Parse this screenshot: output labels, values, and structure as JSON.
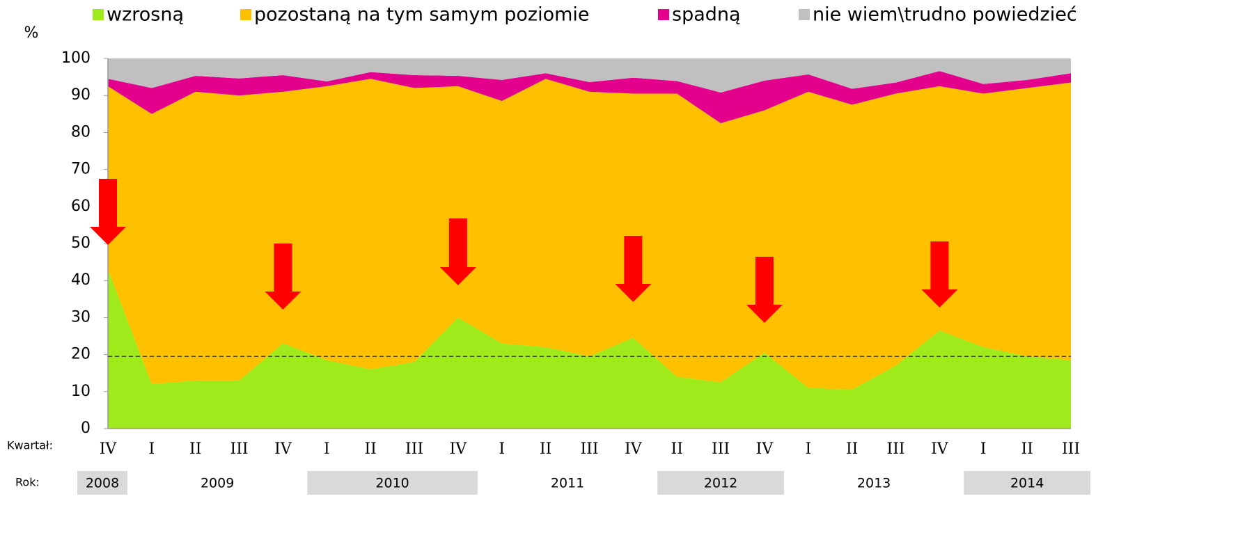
{
  "chart_data": {
    "type": "stacked_area",
    "y_label": "%",
    "row_labels": {
      "quarter": "Kwartał:",
      "year": "Rok:"
    },
    "categories": [
      "IV",
      "I",
      "II",
      "III",
      "IV",
      "I",
      "II",
      "III",
      "IV",
      "I",
      "II",
      "III",
      "IV",
      "II",
      "III",
      "IV",
      "I",
      "II",
      "III",
      "IV",
      "I",
      "II",
      "III"
    ],
    "years": [
      "2008",
      "2009",
      "2010",
      "2011",
      "2012",
      "2013",
      "2014"
    ],
    "series": [
      {
        "name": "wzrosną",
        "color": "#9fea1a",
        "values": [
          43,
          12,
          13,
          13,
          23,
          18.5,
          16,
          18,
          30,
          23,
          22,
          19.5,
          24.5,
          14,
          12.5,
          20.5,
          11,
          10.5,
          17,
          26.5,
          22,
          19.5,
          18.5
        ]
      },
      {
        "name": "pozostaną na tym samym poziomie",
        "color": "#ffc000",
        "values": [
          49.5,
          73,
          78,
          77,
          68,
          74,
          78.5,
          74,
          62.5,
          65.5,
          72.5,
          71.5,
          66,
          76.5,
          70,
          65.5,
          80,
          77,
          73.5,
          66,
          68.5,
          72.5,
          75
        ]
      },
      {
        "name": "spadną",
        "color": "#e3008c",
        "values": [
          2,
          7,
          4.3,
          4.6,
          4.5,
          1.3,
          1.8,
          3.5,
          2.8,
          5.7,
          1.5,
          2.6,
          4.3,
          3.4,
          8.3,
          8,
          4.7,
          4.3,
          3,
          4.1,
          2.6,
          2.2,
          2.5
        ]
      },
      {
        "name": "nie wiem\\trudno powiedzieć",
        "color": "#c0c0c0",
        "values": [
          5.5,
          8,
          4.7,
          5.4,
          4.5,
          6.2,
          3.7,
          4.5,
          4.7,
          5.8,
          4,
          6.4,
          5.2,
          6.1,
          9.2,
          6,
          4.3,
          8.2,
          6.5,
          3.4,
          6.9,
          5.8,
          4
        ]
      }
    ],
    "reference_line": 19.5,
    "ylim": [
      0,
      100
    ],
    "yticks": [
      0,
      10,
      20,
      30,
      40,
      50,
      60,
      70,
      80,
      90,
      100
    ]
  }
}
